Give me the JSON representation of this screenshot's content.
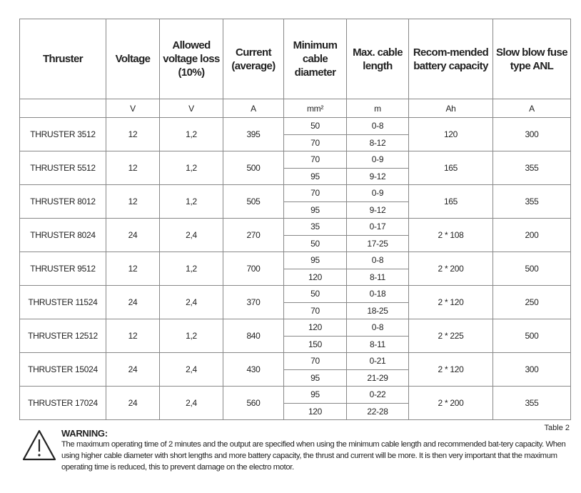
{
  "headers": [
    "Thruster",
    "Voltage",
    "Allowed voltage loss (10%)",
    "Current (average)",
    "Minimum cable diameter",
    "Max. cable length",
    "Recom-mended battery capacity",
    "Slow blow fuse type ANL"
  ],
  "units": [
    "",
    "V",
    "V",
    "A",
    "mm²",
    "m",
    "Ah",
    "A"
  ],
  "rows": [
    {
      "thruster": "THRUSTER 3512",
      "voltage": "12",
      "loss": "1,2",
      "current": "395",
      "cables": [
        {
          "d": "50",
          "l": "0-8"
        },
        {
          "d": "70",
          "l": "8-12"
        }
      ],
      "battery": "120",
      "fuse": "300"
    },
    {
      "thruster": "THRUSTER 5512",
      "voltage": "12",
      "loss": "1,2",
      "current": "500",
      "cables": [
        {
          "d": "70",
          "l": "0-9"
        },
        {
          "d": "95",
          "l": "9-12"
        }
      ],
      "battery": "165",
      "fuse": "355"
    },
    {
      "thruster": "THRUSTER 8012",
      "voltage": "12",
      "loss": "1,2",
      "current": "505",
      "cables": [
        {
          "d": "70",
          "l": "0-9"
        },
        {
          "d": "95",
          "l": "9-12"
        }
      ],
      "battery": "165",
      "fuse": "355"
    },
    {
      "thruster": "THRUSTER 8024",
      "voltage": "24",
      "loss": "2,4",
      "current": "270",
      "cables": [
        {
          "d": "35",
          "l": "0-17"
        },
        {
          "d": "50",
          "l": "17-25"
        }
      ],
      "battery": "2 * 108",
      "fuse": "200"
    },
    {
      "thruster": "THRUSTER 9512",
      "voltage": "12",
      "loss": "1,2",
      "current": "700",
      "cables": [
        {
          "d": "95",
          "l": "0-8"
        },
        {
          "d": "120",
          "l": "8-11"
        }
      ],
      "battery": "2 * 200",
      "fuse": "500"
    },
    {
      "thruster": "THRUSTER 11524",
      "voltage": "24",
      "loss": "2,4",
      "current": "370",
      "cables": [
        {
          "d": "50",
          "l": "0-18"
        },
        {
          "d": "70",
          "l": "18-25"
        }
      ],
      "battery": "2 * 120",
      "fuse": "250"
    },
    {
      "thruster": "THRUSTER 12512",
      "voltage": "12",
      "loss": "1,2",
      "current": "840",
      "cables": [
        {
          "d": "120",
          "l": "0-8"
        },
        {
          "d": "150",
          "l": "8-11"
        }
      ],
      "battery": "2 * 225",
      "fuse": "500"
    },
    {
      "thruster": "THRUSTER 15024",
      "voltage": "24",
      "loss": "2,4",
      "current": "430",
      "cables": [
        {
          "d": "70",
          "l": "0-21"
        },
        {
          "d": "95",
          "l": "21-29"
        }
      ],
      "battery": "2 * 120",
      "fuse": "300"
    },
    {
      "thruster": "THRUSTER 17024",
      "voltage": "24",
      "loss": "2,4",
      "current": "560",
      "cables": [
        {
          "d": "95",
          "l": "0-22"
        },
        {
          "d": "120",
          "l": "22-28"
        }
      ],
      "battery": "2 * 200",
      "fuse": "355"
    }
  ],
  "table_label": "Table 2",
  "warning": {
    "icon": "warning-triangle-icon",
    "title": "WARNING:",
    "text": "The maximum operating time of 2 minutes and the output are specified when using the minimum cable length and recommended bat-tery capacity. When using higher cable diameter with short lengths and more battery capacity,  the thrust and current will be more. It is then very important that the maximum operating time is reduced, this to prevent damage on the electro motor."
  }
}
